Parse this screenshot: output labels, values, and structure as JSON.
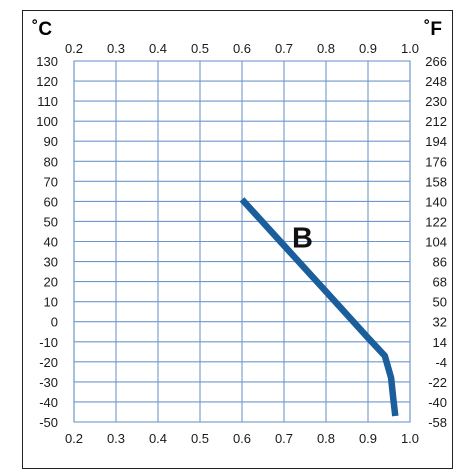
{
  "chart_data": {
    "type": "line",
    "left_unit": "˚C",
    "right_unit": "˚F",
    "x_ticks": [
      "0.2",
      "0.3",
      "0.4",
      "0.5",
      "0.6",
      "0.7",
      "0.8",
      "0.9",
      "1.0"
    ],
    "x_lim": [
      0.2,
      1.0
    ],
    "y_lim": [
      -50,
      130
    ],
    "y_ticks_left": [
      "130",
      "120",
      "110",
      "100",
      "90",
      "80",
      "70",
      "60",
      "50",
      "40",
      "30",
      "20",
      "10",
      "0",
      "-10",
      "-20",
      "-30",
      "-40",
      "-50"
    ],
    "y_ticks_right": [
      "266",
      "248",
      "230",
      "212",
      "194",
      "176",
      "158",
      "140",
      "122",
      "104",
      "86",
      "68",
      "50",
      "32",
      "14",
      "-4",
      "-22",
      "-40",
      "-58"
    ],
    "grid": true,
    "series": [
      {
        "name": "B",
        "color": "#1a5e9c",
        "points": [
          {
            "x": 0.6,
            "y": 61
          },
          {
            "x": 0.7,
            "y": 38
          },
          {
            "x": 0.8,
            "y": 15
          },
          {
            "x": 0.9,
            "y": -8
          },
          {
            "x": 0.94,
            "y": -17
          },
          {
            "x": 0.955,
            "y": -28
          },
          {
            "x": 0.96,
            "y": -38
          },
          {
            "x": 0.965,
            "y": -47
          }
        ]
      }
    ]
  }
}
